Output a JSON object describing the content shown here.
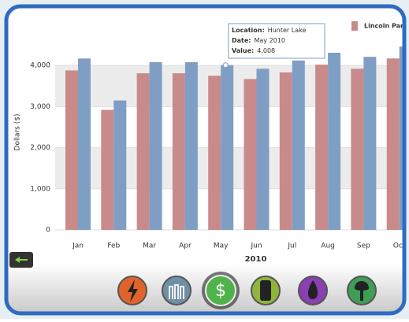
{
  "chart_data": {
    "type": "bar",
    "ylabel": "Dollars ($)",
    "xlabel": "2010",
    "categories": [
      "Jan",
      "Feb",
      "Mar",
      "Apr",
      "May",
      "Jun",
      "Jul",
      "Aug",
      "Sep",
      "Oct"
    ],
    "series": [
      {
        "name": "Lincoln Par",
        "color": "#c98a8c",
        "values": [
          3880,
          2920,
          3810,
          3810,
          3750,
          3670,
          3830,
          4020,
          3920,
          4170
        ]
      },
      {
        "color": "#7f9ec4",
        "values": [
          4170,
          3150,
          4080,
          4080,
          4008,
          3920,
          4120,
          4310,
          4210,
          4460
        ]
      }
    ],
    "ylim": [
      0,
      4750
    ],
    "yticks": [
      0,
      {
        "value": 1000,
        "label": "1,000"
      },
      {
        "value": 2000,
        "label": "2,000"
      },
      {
        "value": 3000,
        "label": "3,000"
      },
      {
        "value": 4000,
        "label": "4,000"
      }
    ],
    "grid": true,
    "tooltip": {
      "location_label": "Location:",
      "location": "Hunter Lake",
      "date_label": "Date:",
      "date": "May 2010",
      "value_label": "Value:",
      "value": "4,008"
    }
  }
}
